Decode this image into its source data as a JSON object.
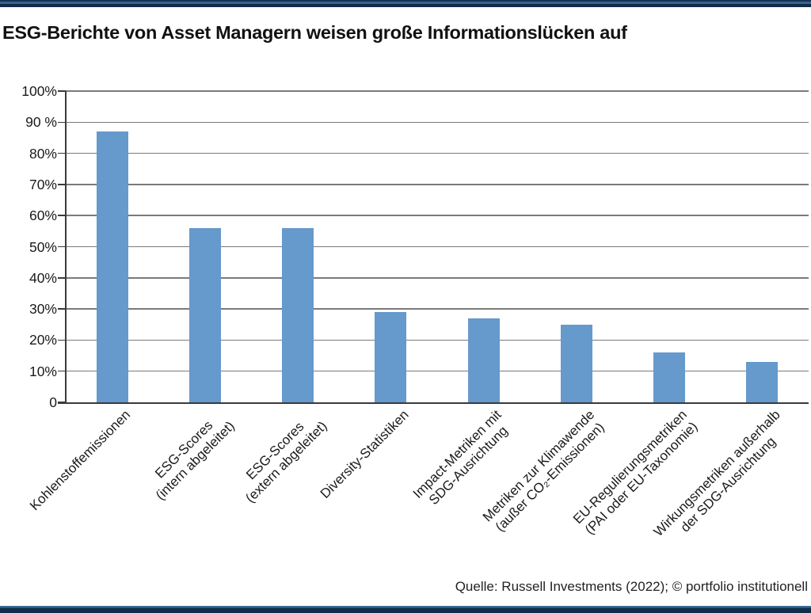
{
  "title": "ESG-Berichte von Asset Managern weisen große Informationslücken auf",
  "source": "Quelle: Russell Investments (2022); © portfolio institutionell",
  "band_colors": {
    "dark_navy": "#132e4b",
    "stripe_blue": "#36658f"
  },
  "chart_data": {
    "type": "bar",
    "title": "ESG-Berichte von Asset Managern weisen große Informationslücken auf",
    "categories": [
      [
        "Kohlenstoffemissionen"
      ],
      [
        "ESG-Scores",
        "(intern abgeleitet)"
      ],
      [
        "ESG-Scores",
        "(extern abgeleitet)"
      ],
      [
        "Diversity-Statistiken"
      ],
      [
        "Impact-Metriken mit",
        "SDG-Ausrichtung"
      ],
      [
        "Metriken zur Klimawende",
        "(außer CO₂-Emissionen)"
      ],
      [
        "EU-Regulierungsmetriken",
        "(PAI oder EU-Taxonomie)"
      ],
      [
        "Wirkungsmetriken außerhalb",
        "der SDG-Ausrichtung"
      ]
    ],
    "values": [
      87,
      56,
      56,
      29,
      27,
      25,
      16,
      13
    ],
    "unit": "%",
    "ylim": [
      0,
      100
    ],
    "grid": true,
    "legend": "none",
    "yticks": [
      {
        "v": 100,
        "label": "100%"
      },
      {
        "v": 90,
        "label": "90 %"
      },
      {
        "v": 80,
        "label": "80%"
      },
      {
        "v": 70,
        "label": "70%"
      },
      {
        "v": 60,
        "label": "60%"
      },
      {
        "v": 50,
        "label": "50%"
      },
      {
        "v": 40,
        "label": "40%"
      },
      {
        "v": 30,
        "label": "30%"
      },
      {
        "v": 20,
        "label": "20%"
      },
      {
        "v": 10,
        "label": "10%"
      },
      {
        "v": 0,
        "label": "0"
      }
    ],
    "bar_color": "#6699cc",
    "gridline_color": "#7a7a7a",
    "axis_color": "#3a3a3a",
    "xlabel": "",
    "ylabel": ""
  }
}
